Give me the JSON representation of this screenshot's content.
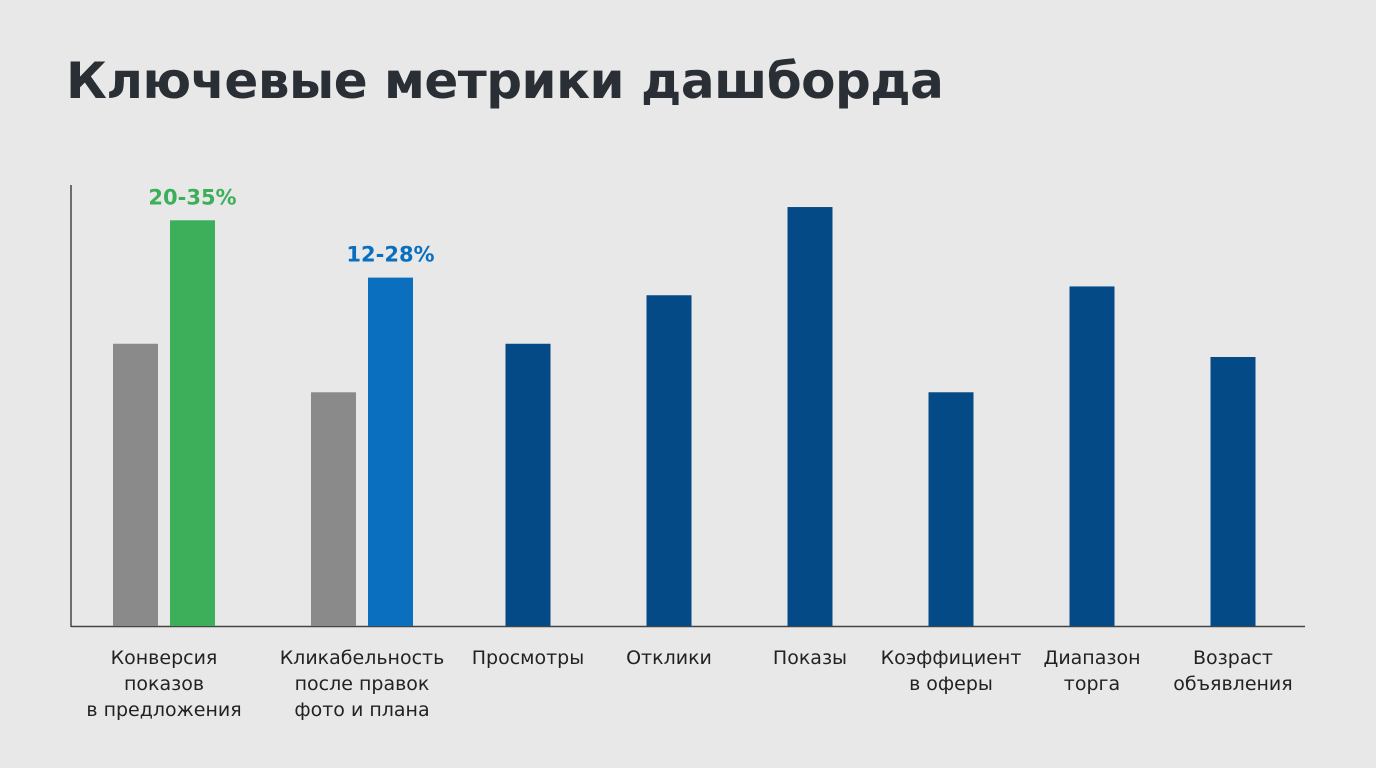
{
  "title": "Ключевые метрики дашборда",
  "chart_data": {
    "type": "bar",
    "title": "Ключевые метрики дашборда",
    "xlabel": "",
    "ylabel": "",
    "ylim": [
      0,
      100
    ],
    "grid": false,
    "y_ticks_shown": false,
    "colors": {
      "gray": "#8a8a8a",
      "green": "#3dae5a",
      "blue": "#0a6fbf",
      "navy": "#044a86"
    },
    "categories": [
      {
        "label": "Конверсия\nпоказов\nв предложения",
        "bars": [
          {
            "value": 64,
            "color": "#8a8a8a"
          },
          {
            "value": 92,
            "color": "#3dae5a",
            "data_label": "20-35%"
          }
        ]
      },
      {
        "label": "Кликабельность\nпосле правок\nфото и плана",
        "bars": [
          {
            "value": 53,
            "color": "#8a8a8a"
          },
          {
            "value": 79,
            "color": "#0a6fbf",
            "data_label": "12-28%"
          }
        ]
      },
      {
        "label": "Просмотры",
        "bars": [
          {
            "value": 64,
            "color": "#044a86"
          }
        ]
      },
      {
        "label": "Отклики",
        "bars": [
          {
            "value": 75,
            "color": "#044a86"
          }
        ]
      },
      {
        "label": "Показы",
        "bars": [
          {
            "value": 95,
            "color": "#044a86"
          }
        ]
      },
      {
        "label": "Коэффициент\nв оферы",
        "bars": [
          {
            "value": 53,
            "color": "#044a86"
          }
        ]
      },
      {
        "label": "Диапазон\nторга",
        "bars": [
          {
            "value": 77,
            "color": "#044a86"
          }
        ]
      },
      {
        "label": "Возраст\nобъявления",
        "bars": [
          {
            "value": 61,
            "color": "#044a86"
          }
        ]
      }
    ]
  }
}
